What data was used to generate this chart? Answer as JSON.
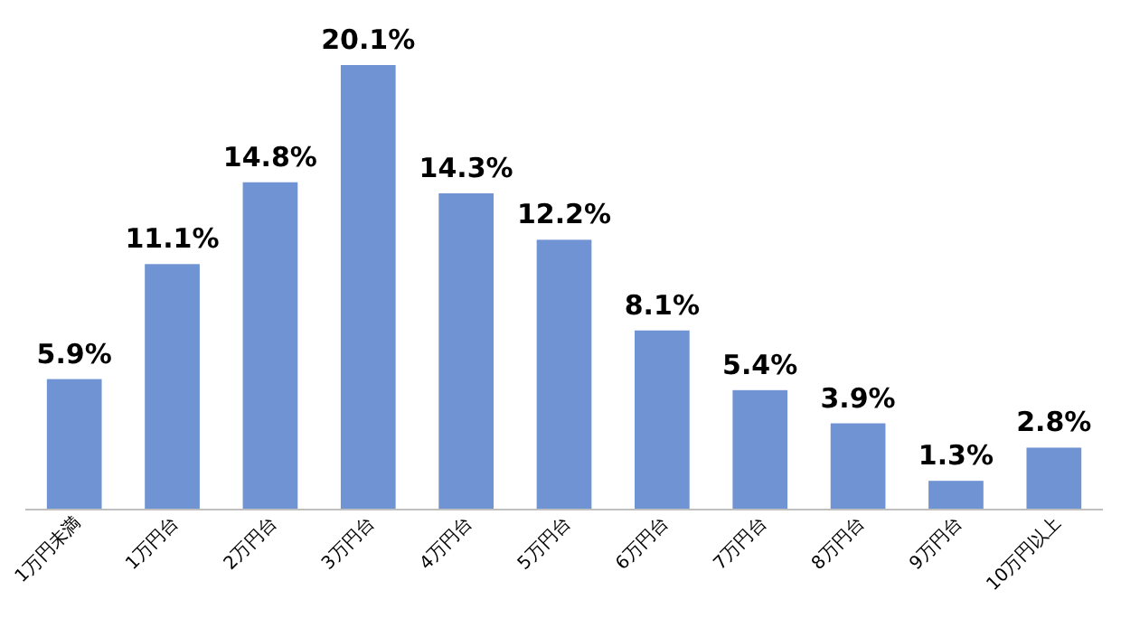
{
  "chart_data": {
    "type": "bar",
    "categories": [
      "1万円未満",
      "1万円台",
      "2万円台",
      "3万円台",
      "4万円台",
      "5万円台",
      "6万円台",
      "7万円台",
      "8万円台",
      "9万円台",
      "10万円以上"
    ],
    "values": [
      5.9,
      11.1,
      14.8,
      20.1,
      14.3,
      12.2,
      8.1,
      5.4,
      3.9,
      1.3,
      2.8
    ],
    "value_labels": [
      "5.9%",
      "11.1%",
      "14.8%",
      "20.1%",
      "14.3%",
      "12.2%",
      "8.1%",
      "5.4%",
      "3.9%",
      "1.3%",
      "2.8%"
    ],
    "color": "#6f93d3"
  }
}
